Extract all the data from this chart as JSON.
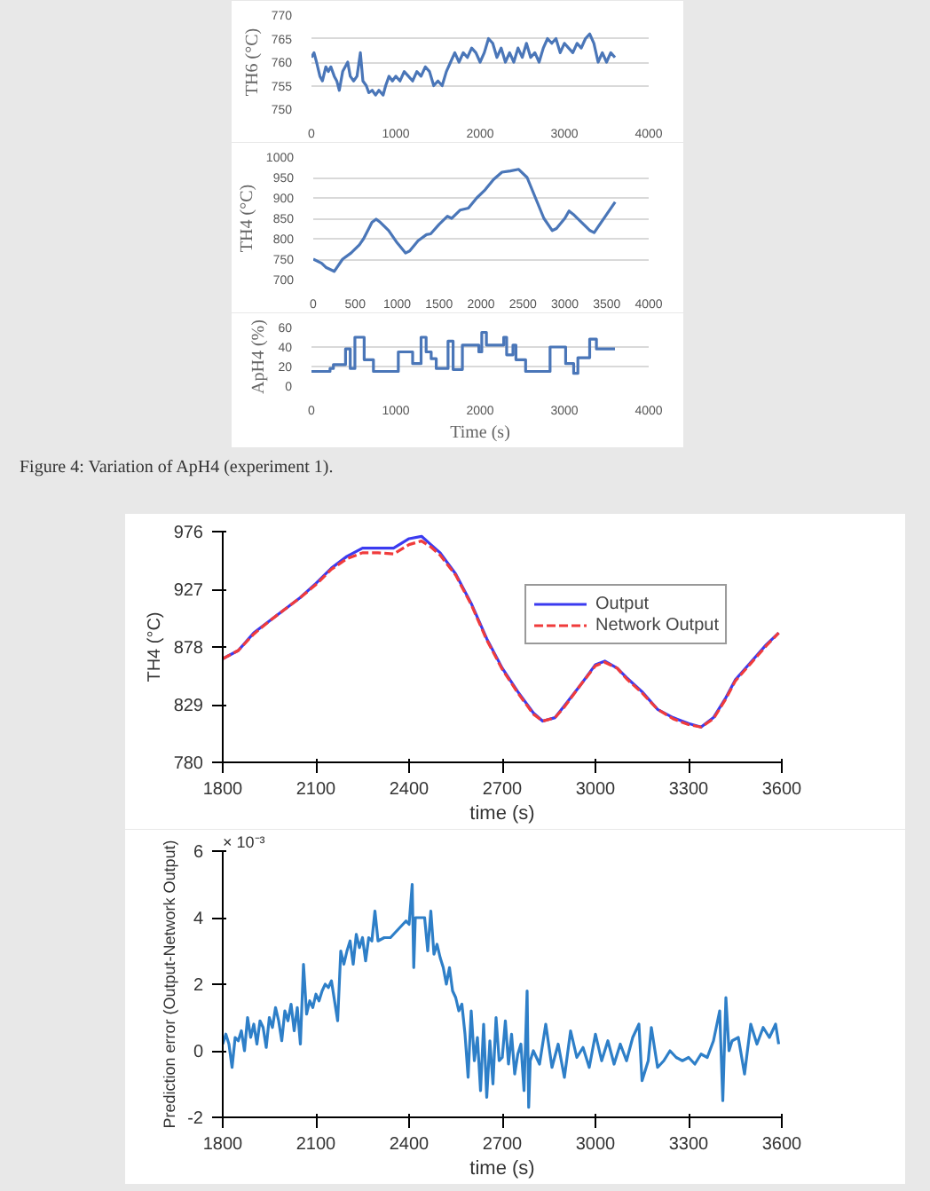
{
  "chart_data": [
    {
      "type": "line",
      "ylabel": "TH6 (°C)",
      "xlim": [
        0,
        4000
      ],
      "ylim": [
        750,
        770
      ],
      "xticks": [
        0,
        1000,
        2000,
        3000,
        4000
      ],
      "yticks": [
        750,
        755,
        760,
        765,
        770
      ],
      "grid": "y",
      "series": [
        {
          "color": "#4a76b8",
          "x": [
            0,
            30,
            60,
            100,
            130,
            170,
            200,
            230,
            270,
            300,
            330,
            370,
            400,
            430,
            460,
            500,
            540,
            580,
            610,
            650,
            680,
            720,
            760,
            800,
            850,
            880,
            920,
            960,
            1000,
            1050,
            1100,
            1150,
            1200,
            1250,
            1300,
            1350,
            1400,
            1450,
            1500,
            1550,
            1600,
            1650,
            1700,
            1750,
            1800,
            1850,
            1900,
            1950,
            2000,
            2050,
            2100,
            2150,
            2200,
            2250,
            2300,
            2350,
            2400,
            2450,
            2500,
            2550,
            2600,
            2650,
            2700,
            2750,
            2800,
            2850,
            2900,
            2950,
            3000,
            3050,
            3100,
            3150,
            3200,
            3250,
            3300,
            3350,
            3400,
            3450,
            3500,
            3550,
            3600
          ],
          "values": [
            761,
            762,
            760,
            757,
            756,
            759,
            758,
            759,
            757,
            756,
            754,
            758,
            759,
            760,
            757,
            756,
            757,
            762,
            756,
            755,
            753.5,
            754,
            753,
            754,
            753,
            755,
            757,
            756,
            757,
            756,
            758,
            757,
            756,
            758,
            757,
            759,
            758,
            755,
            756,
            755,
            758,
            760,
            762,
            760,
            762,
            761,
            763,
            762,
            760,
            762,
            765,
            764,
            761,
            763,
            760,
            762,
            760,
            763,
            761,
            764,
            761,
            762,
            760,
            763,
            765,
            764,
            765,
            762,
            764,
            763,
            762,
            764,
            763,
            765,
            766,
            764,
            760,
            762,
            760,
            762,
            761
          ]
        }
      ]
    },
    {
      "type": "line",
      "ylabel": "TH4 (°C)",
      "xlim": [
        0,
        4000
      ],
      "ylim": [
        700,
        1000
      ],
      "xticks": [
        0,
        500,
        1000,
        1500,
        2000,
        2500,
        3000,
        3500,
        4000
      ],
      "yticks": [
        700,
        750,
        800,
        850,
        900,
        950,
        1000
      ],
      "grid": "y",
      "series": [
        {
          "color": "#4a76b8",
          "x": [
            0,
            100,
            150,
            250,
            350,
            450,
            550,
            600,
            700,
            750,
            800,
            900,
            1000,
            1100,
            1150,
            1250,
            1350,
            1400,
            1500,
            1600,
            1650,
            1750,
            1850,
            1950,
            2050,
            2150,
            2250,
            2350,
            2450,
            2550,
            2650,
            2750,
            2850,
            2900,
            3000,
            3050,
            3100,
            3200,
            3300,
            3350,
            3400,
            3500,
            3600
          ],
          "values": [
            750,
            740,
            730,
            720,
            750,
            765,
            785,
            800,
            840,
            848,
            840,
            820,
            790,
            765,
            770,
            795,
            810,
            812,
            835,
            855,
            850,
            870,
            875,
            900,
            920,
            945,
            963,
            966,
            970,
            950,
            900,
            850,
            820,
            825,
            850,
            868,
            860,
            840,
            820,
            815,
            830,
            860,
            890
          ]
        }
      ]
    },
    {
      "type": "step",
      "ylabel": "ApH4 (%)",
      "xlabel": "Time (s)",
      "xlim": [
        0,
        4000
      ],
      "ylim": [
        0,
        60
      ],
      "xticks": [
        0,
        1000,
        2000,
        3000,
        4000
      ],
      "yticks": [
        0,
        20,
        40,
        60
      ],
      "grid": "y",
      "annotations": [
        "Figure 4: Variation of ApH4 (experiment 1)."
      ],
      "series": [
        {
          "color": "#4a76b8",
          "x": [
            0,
            220,
            260,
            404,
            460,
            515,
            625,
            735,
            1030,
            1200,
            1300,
            1360,
            1420,
            1480,
            1565,
            1620,
            1680,
            1730,
            1790,
            1985,
            2020,
            2075,
            2170,
            2280,
            2315,
            2390,
            2425,
            2540,
            2800,
            2830,
            2980,
            3015,
            3110,
            3160,
            3300,
            3380,
            3600
          ],
          "values": [
            15,
            18,
            22,
            38,
            18,
            50,
            27,
            15,
            35,
            23,
            50,
            35,
            28,
            18,
            18,
            46,
            17,
            17,
            42,
            35,
            55,
            42,
            42,
            50,
            32,
            42,
            27,
            15,
            15,
            40,
            40,
            23,
            13,
            29,
            48,
            38,
            38
          ]
        }
      ]
    },
    {
      "type": "line",
      "ylabel": "TH4 (°C)",
      "xlabel": "time (s)",
      "xlim": [
        1800,
        3600
      ],
      "ylim": [
        780,
        976
      ],
      "xticks": [
        1800,
        2100,
        2400,
        2700,
        3000,
        3300,
        3600
      ],
      "yticks": [
        780,
        829,
        878,
        927,
        976
      ],
      "legend": "top right",
      "series": [
        {
          "name": "Output",
          "color": "#3b3bf0",
          "line_style": "solid",
          "x": [
            1800,
            1850,
            1900,
            1950,
            2000,
            2050,
            2100,
            2150,
            2200,
            2250,
            2300,
            2350,
            2400,
            2440,
            2470,
            2500,
            2550,
            2600,
            2650,
            2700,
            2750,
            2800,
            2830,
            2870,
            2900,
            2950,
            3000,
            3030,
            3070,
            3100,
            3150,
            3200,
            3250,
            3300,
            3340,
            3380,
            3420,
            3450,
            3500,
            3550,
            3590
          ],
          "values": [
            868,
            875,
            890,
            900,
            910,
            920,
            932,
            945,
            955,
            962,
            962,
            962,
            970,
            972,
            965,
            958,
            940,
            915,
            885,
            860,
            840,
            822,
            815,
            818,
            828,
            845,
            863,
            866,
            860,
            852,
            840,
            825,
            818,
            813,
            810,
            818,
            835,
            850,
            865,
            880,
            890
          ]
        },
        {
          "name": "Network Output",
          "color": "#f03b3b",
          "line_style": "dashed",
          "x": [
            1800,
            1850,
            1900,
            1950,
            2000,
            2050,
            2100,
            2150,
            2200,
            2250,
            2300,
            2350,
            2400,
            2440,
            2470,
            2500,
            2550,
            2600,
            2650,
            2700,
            2750,
            2800,
            2830,
            2870,
            2900,
            2950,
            3000,
            3030,
            3070,
            3100,
            3150,
            3200,
            3250,
            3300,
            3340,
            3380,
            3420,
            3450,
            3500,
            3550,
            3590
          ],
          "values": [
            868,
            875,
            889,
            900,
            910,
            920,
            931,
            944,
            953,
            958,
            958,
            957,
            965,
            968,
            963,
            956,
            939,
            914,
            884,
            859,
            839,
            821,
            815,
            818,
            827,
            845,
            862,
            865,
            860,
            851,
            839,
            825,
            817,
            812,
            810,
            817,
            834,
            849,
            864,
            879,
            890
          ]
        }
      ]
    },
    {
      "type": "line",
      "ylabel": "Prediction error (Output-Network Output)",
      "xlabel": "time (s)",
      "xlim": [
        1800,
        3600
      ],
      "ylim": [
        -2,
        6
      ],
      "xticks": [
        1800,
        2100,
        2400,
        2700,
        3000,
        3300,
        3600
      ],
      "yticks": [
        -2,
        0,
        2,
        4,
        6
      ],
      "annotations": [
        "× 10⁻³"
      ],
      "series": [
        {
          "color": "#2e7fc8",
          "x": [
            1800,
            1810,
            1820,
            1830,
            1840,
            1850,
            1860,
            1870,
            1880,
            1890,
            1900,
            1910,
            1920,
            1930,
            1940,
            1950,
            1960,
            1970,
            1980,
            1990,
            2000,
            2010,
            2020,
            2030,
            2040,
            2050,
            2060,
            2070,
            2080,
            2090,
            2100,
            2110,
            2120,
            2130,
            2140,
            2150,
            2160,
            2170,
            2180,
            2190,
            2200,
            2210,
            2220,
            2230,
            2240,
            2250,
            2260,
            2270,
            2280,
            2290,
            2300,
            2320,
            2340,
            2360,
            2380,
            2390,
            2400,
            2410,
            2415,
            2420,
            2440,
            2450,
            2460,
            2470,
            2480,
            2490,
            2500,
            2510,
            2520,
            2530,
            2540,
            2550,
            2560,
            2570,
            2580,
            2590,
            2600,
            2610,
            2620,
            2630,
            2640,
            2650,
            2660,
            2670,
            2680,
            2690,
            2700,
            2710,
            2720,
            2730,
            2740,
            2750,
            2760,
            2770,
            2780,
            2785,
            2790,
            2800,
            2820,
            2840,
            2860,
            2880,
            2900,
            2920,
            2940,
            2960,
            2980,
            3000,
            3020,
            3040,
            3060,
            3080,
            3100,
            3120,
            3140,
            3150,
            3170,
            3180,
            3200,
            3220,
            3240,
            3260,
            3280,
            3300,
            3320,
            3340,
            3360,
            3380,
            3400,
            3410,
            3420,
            3430,
            3440,
            3460,
            3480,
            3500,
            3520,
            3540,
            3560,
            3580,
            3590
          ],
          "values": [
            0.2,
            0.5,
            0.2,
            -0.5,
            0.4,
            0.3,
            0.6,
            0.0,
            1.0,
            0.4,
            0.8,
            0.2,
            0.9,
            0.7,
            0.1,
            1.0,
            0.7,
            1.3,
            0.9,
            0.3,
            1.2,
            0.9,
            1.4,
            0.6,
            1.3,
            0.2,
            2.6,
            1.1,
            1.5,
            1.3,
            1.7,
            1.5,
            1.8,
            2.0,
            1.9,
            2.1,
            1.5,
            0.9,
            3.0,
            2.6,
            3.0,
            3.3,
            2.6,
            3.5,
            3.1,
            3.4,
            2.7,
            3.4,
            3.3,
            4.2,
            3.3,
            3.4,
            3.4,
            3.6,
            3.8,
            3.9,
            3.8,
            5.0,
            2.5,
            4.0,
            4.0,
            4.0,
            3.0,
            4.2,
            2.9,
            3.2,
            2.8,
            2.5,
            2.0,
            2.5,
            1.8,
            1.6,
            1.2,
            1.4,
            0.5,
            -0.8,
            1.2,
            -0.3,
            0.4,
            -1.2,
            0.8,
            -1.4,
            0.3,
            -1.0,
            1.0,
            -0.3,
            -0.2,
            0.9,
            -0.4,
            0.5,
            -0.7,
            -0.1,
            0.2,
            -1.2,
            1.8,
            -1.7,
            -0.3,
            0.0,
            -0.4,
            0.8,
            -0.5,
            0.2,
            -0.8,
            0.6,
            -0.2,
            0.1,
            -0.5,
            0.5,
            -0.3,
            0.3,
            -0.4,
            0.2,
            -0.3,
            0.4,
            0.8,
            -0.9,
            -0.3,
            0.7,
            -0.5,
            -0.3,
            0.0,
            -0.2,
            -0.3,
            -0.2,
            -0.4,
            -0.1,
            -0.2,
            0.3,
            1.2,
            -1.5,
            1.6,
            0.0,
            0.3,
            0.4,
            -0.7,
            0.8,
            0.2,
            0.7,
            0.4,
            0.8,
            0.2
          ]
        }
      ]
    }
  ]
}
